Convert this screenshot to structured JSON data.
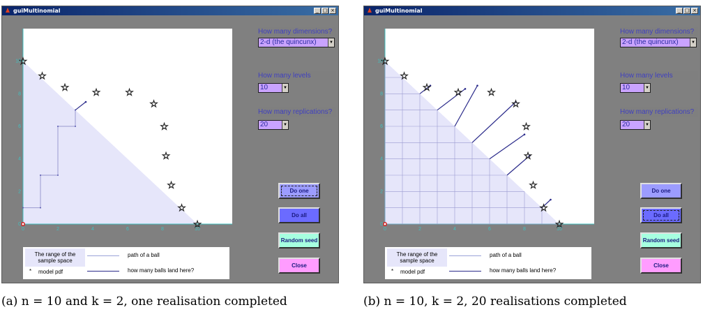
{
  "windows": [
    {
      "title": "guiMultinomial",
      "controls": {
        "dimensions_label": "How many dimensions?",
        "dimensions_value": "2-d (the quincunx)",
        "levels_label": "How many levels",
        "levels_value": "10",
        "replications_label": "How many replications?",
        "replications_value": "20"
      },
      "buttons": {
        "do_one": "Do one",
        "do_all": "Do all",
        "random_seed": "Random seed",
        "close": "Close"
      },
      "legend": {
        "range_line1": "The range of the",
        "range_line2": "sample space",
        "star": "*",
        "model_pdf": "model pdf",
        "path": "path of a ball",
        "land": "how many balls land here?"
      },
      "caption": "(a)  n = 10 and k = 2, one realisation completed",
      "stars": [
        [
          0,
          10
        ],
        [
          1.1,
          9.1
        ],
        [
          2.4,
          8.4
        ],
        [
          4.2,
          8.1
        ],
        [
          6.1,
          8.1
        ],
        [
          7.5,
          7.4
        ],
        [
          8.1,
          6.0
        ],
        [
          8.2,
          4.2
        ],
        [
          8.5,
          2.4
        ],
        [
          9.1,
          1.0
        ],
        [
          10,
          0
        ]
      ],
      "path": [
        [
          0,
          1
        ],
        [
          1,
          1
        ],
        [
          1,
          3
        ],
        [
          2,
          3
        ],
        [
          2,
          6
        ],
        [
          3,
          6
        ],
        [
          3,
          7
        ]
      ],
      "land": [
        [
          [
            3,
            7
          ],
          [
            3.6,
            7.5
          ]
        ]
      ]
    },
    {
      "title": "guiMultinomial",
      "controls": {
        "dimensions_label": "How many dimensions?",
        "dimensions_value": "2-d (the quincunx)",
        "levels_label": "How many levels",
        "levels_value": "10",
        "replications_label": "How many replications?",
        "replications_value": "20"
      },
      "buttons": {
        "do_one": "Do one",
        "do_all": "Do all",
        "random_seed": "Random seed",
        "close": "Close"
      },
      "legend": {
        "range_line1": "The range of the",
        "range_line2": "sample space",
        "star": "*",
        "model_pdf": "model pdf",
        "path": "path of a ball",
        "land": "how many balls land here?"
      },
      "caption": "(b)  n = 10, k = 2, 20 realisations completed",
      "stars": [
        [
          0,
          10
        ],
        [
          1.1,
          9.1
        ],
        [
          2.4,
          8.4
        ],
        [
          4.2,
          8.1
        ],
        [
          6.1,
          8.1
        ],
        [
          7.5,
          7.4
        ],
        [
          8.1,
          6.0
        ],
        [
          8.2,
          4.2
        ],
        [
          8.5,
          2.4
        ],
        [
          9.1,
          1.0
        ],
        [
          10,
          0
        ]
      ],
      "land": [
        [
          [
            2,
            8
          ],
          [
            2.6,
            8.5
          ]
        ],
        [
          [
            4,
            6
          ],
          [
            5.3,
            8.5
          ]
        ],
        [
          [
            5,
            5
          ],
          [
            7.5,
            7.5
          ]
        ],
        [
          [
            6,
            4
          ],
          [
            8.0,
            5.5
          ]
        ],
        [
          [
            7,
            3
          ],
          [
            8.3,
            4.2
          ]
        ],
        [
          [
            9,
            1
          ],
          [
            9.5,
            1.5
          ]
        ],
        [
          [
            3,
            7
          ],
          [
            4.6,
            8.3
          ]
        ]
      ]
    }
  ],
  "axis": {
    "x_ticks": [
      "0",
      "2",
      "4",
      "6",
      "8",
      "10"
    ],
    "y_ticks": [
      "0",
      "2",
      "4",
      "6",
      "8",
      "10"
    ]
  }
}
